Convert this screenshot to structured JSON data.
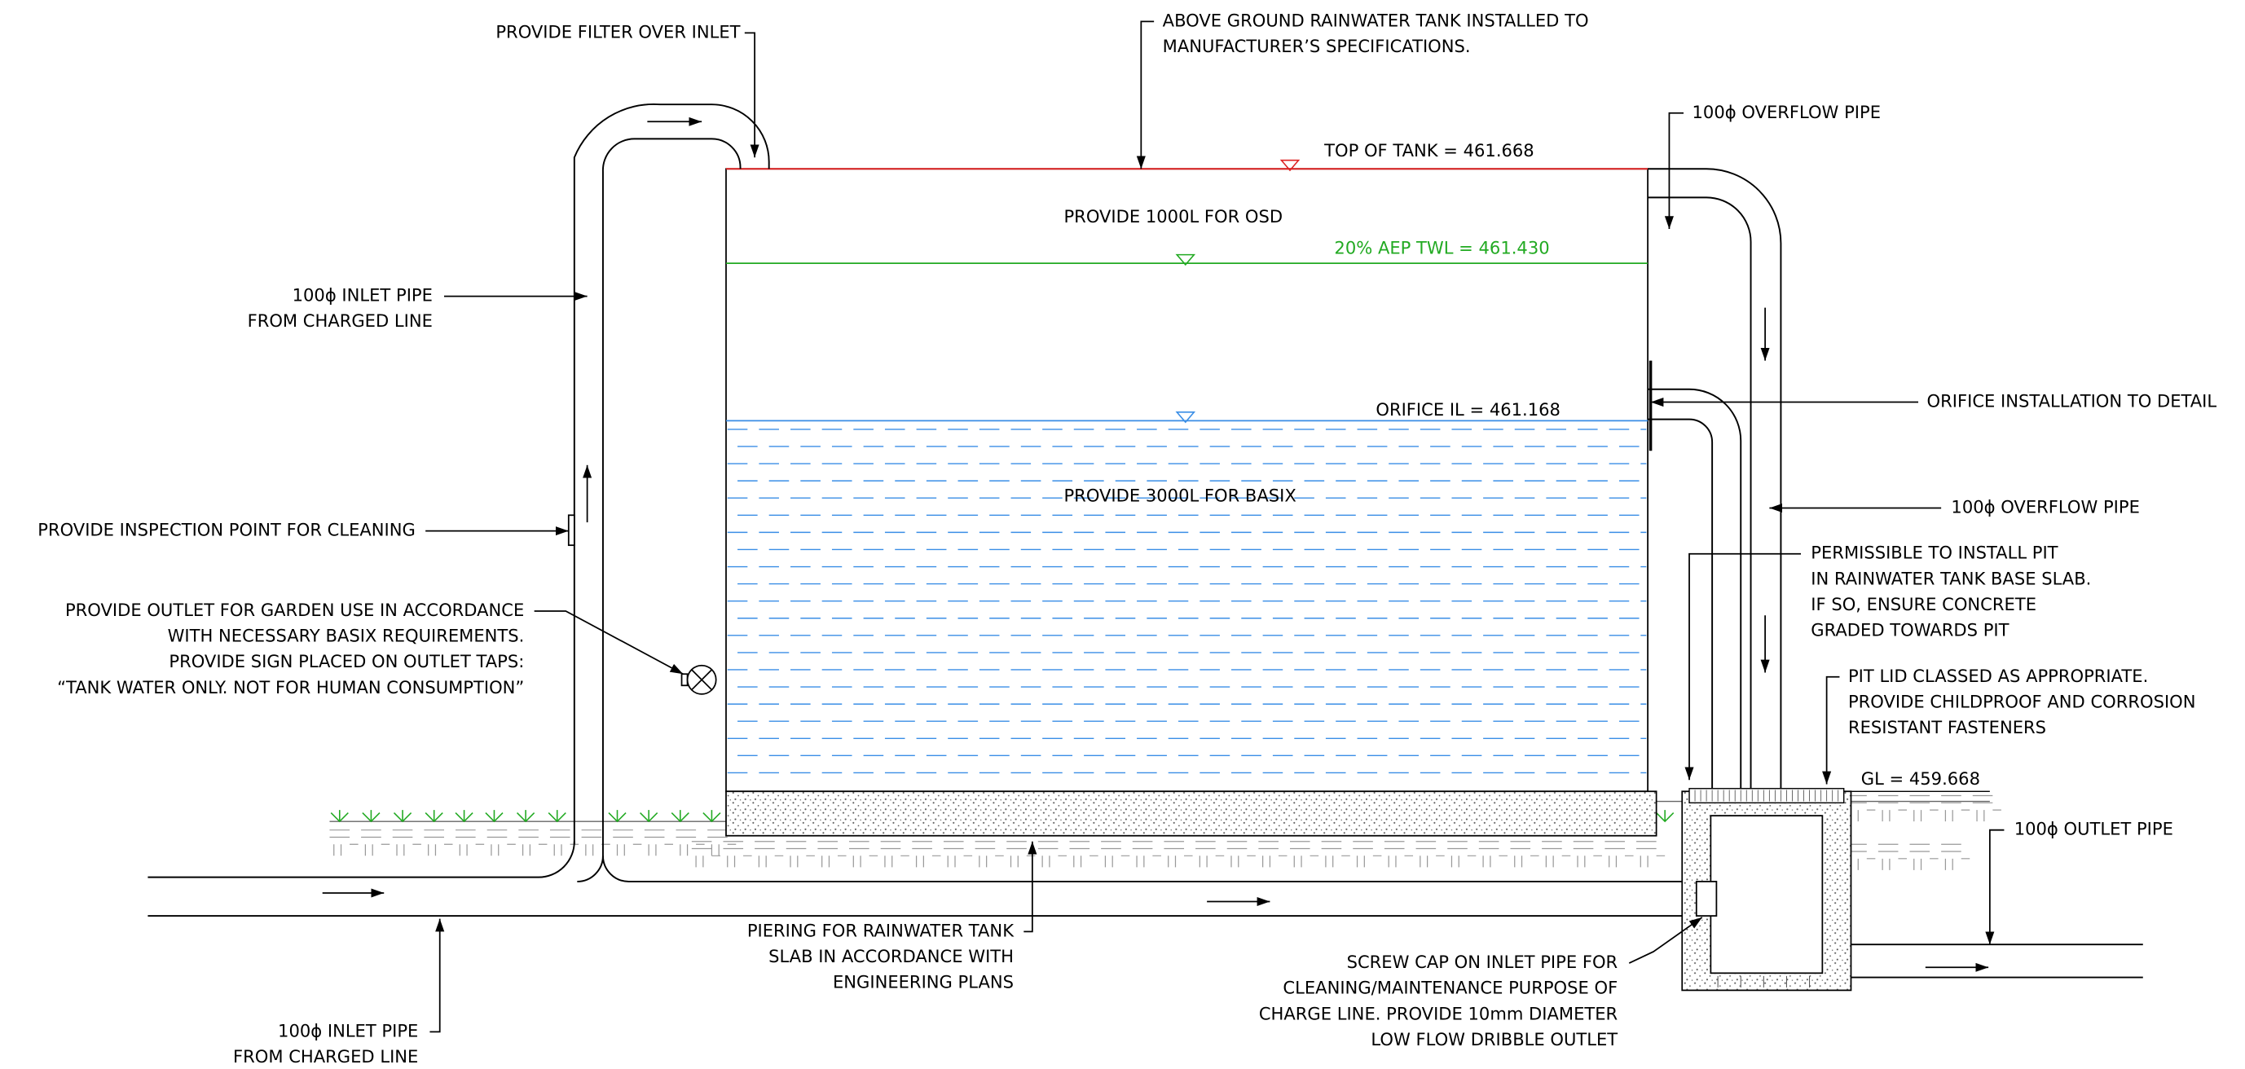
{
  "annotations": [
    {
      "lines": [
        "PROVIDE FILTER OVER INLET"
      ]
    },
    {
      "lines": [
        "ABOVE GROUND RAINWATER TANK INSTALLED TO",
        "MANUFACTURER’S SPECIFICATIONS."
      ]
    },
    {
      "lines": [
        "100ϕ OVERFLOW PIPE"
      ]
    },
    {
      "lines": [
        "TOP OF TANK = 461.668"
      ]
    },
    {
      "lines": [
        "PROVIDE 1000L FOR OSD"
      ]
    },
    {
      "lines": [
        "20% AEP TWL = 461.430"
      ]
    },
    {
      "lines": [
        "100ϕ INLET PIPE",
        "FROM CHARGED LINE"
      ]
    },
    {
      "lines": [
        "ORIFICE IL = 461.168"
      ]
    },
    {
      "lines": [
        "ORIFICE INSTALLATION TO DETAIL"
      ]
    },
    {
      "lines": [
        "PROVIDE 3000L FOR BASIX"
      ]
    },
    {
      "lines": [
        "100ϕ OVERFLOW PIPE"
      ]
    },
    {
      "lines": [
        "PROVIDE INSPECTION POINT FOR CLEANING"
      ]
    },
    {
      "lines": [
        "PERMISSIBLE TO INSTALL PIT",
        "IN RAINWATER TANK BASE SLAB.",
        "IF SO, ENSURE CONCRETE",
        "GRADED TOWARDS PIT"
      ]
    },
    {
      "lines": [
        "PROVIDE OUTLET FOR GARDEN USE IN ACCORDANCE",
        "WITH NECESSARY BASIX REQUIREMENTS.",
        "PROVIDE SIGN PLACED ON OUTLET TAPS:",
        "“TANK WATER ONLY. NOT FOR HUMAN CONSUMPTION”"
      ]
    },
    {
      "lines": [
        "PIT LID CLASSED AS APPROPRIATE.",
        "PROVIDE CHILDPROOF AND CORROSION",
        "RESISTANT FASTENERS"
      ]
    },
    {
      "lines": [
        "GL = 459.668"
      ]
    },
    {
      "lines": [
        "100ϕ OUTLET PIPE"
      ]
    },
    {
      "lines": [
        "PIERING FOR RAINWATER TANK",
        "SLAB IN ACCORDANCE WITH",
        "ENGINEERING PLANS"
      ]
    },
    {
      "lines": [
        "SCREW CAP ON INLET PIPE FOR",
        "CLEANING/MAINTENANCE PURPOSE OF",
        "CHARGE LINE. PROVIDE 10mm DIAMETER",
        "LOW FLOW DRIBBLE OUTLET"
      ]
    },
    {
      "lines": [
        "100ϕ INLET PIPE",
        "FROM CHARGED LINE"
      ]
    }
  ]
}
